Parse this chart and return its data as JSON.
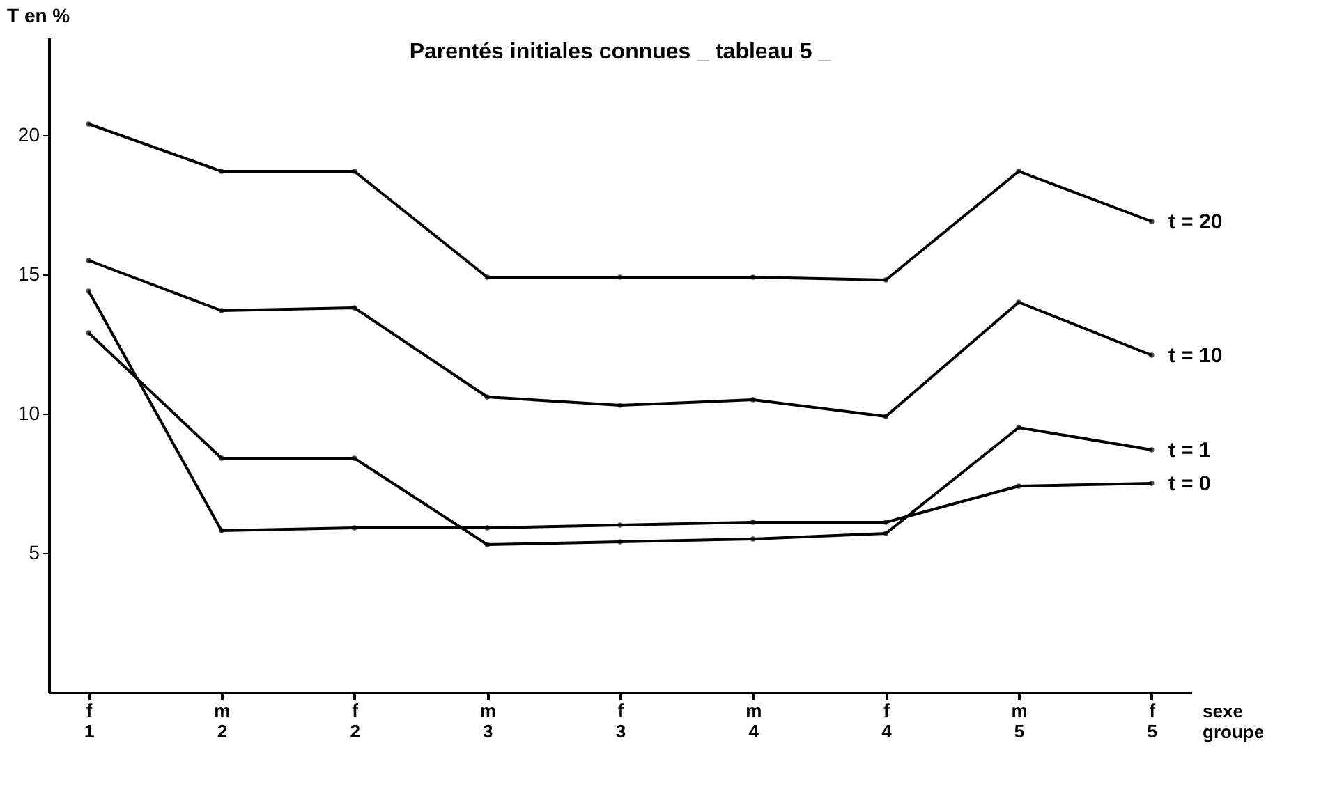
{
  "chart_data": {
    "type": "line",
    "title": "Parentés  initiales  connues _ tableau 5 _",
    "ylabel": "T en %",
    "xlabel": "sexe\ngroupe",
    "categories": [
      "f\n1",
      "m\n2",
      "f\n2",
      "m\n3",
      "f\n3",
      "m\n4",
      "f\n4",
      "m\n5",
      "f\n5"
    ],
    "series": [
      {
        "name": "t = 20",
        "color": "#000000",
        "values": [
          20.4,
          18.7,
          18.7,
          14.9,
          14.9,
          14.9,
          14.8,
          18.7,
          16.9
        ]
      },
      {
        "name": "t = 10",
        "color": "#000000",
        "values": [
          15.5,
          13.7,
          13.8,
          10.6,
          10.3,
          10.5,
          9.9,
          14.0,
          12.1
        ]
      },
      {
        "name": "t = 1",
        "color": "#000000",
        "values": [
          12.9,
          8.4,
          8.4,
          5.3,
          5.4,
          5.5,
          5.7,
          9.5,
          8.7
        ]
      },
      {
        "name": "t = 0",
        "color": "#000000",
        "values": [
          14.4,
          5.8,
          5.9,
          5.9,
          6.0,
          6.1,
          6.1,
          7.4,
          7.5
        ]
      }
    ],
    "ylim": [
      0,
      23.5
    ],
    "yticks": [
      5,
      10,
      15,
      20
    ],
    "grid": false,
    "legend": false,
    "marker": "circle",
    "line_style": "solid"
  }
}
